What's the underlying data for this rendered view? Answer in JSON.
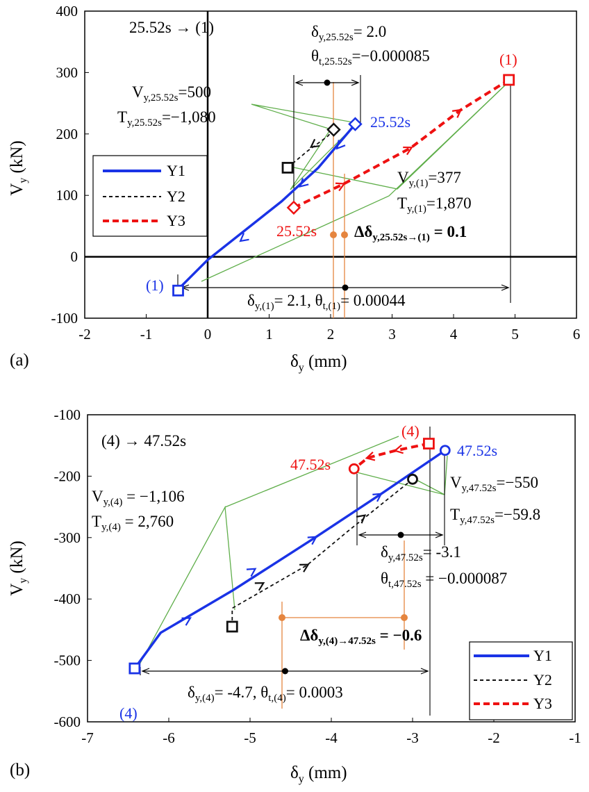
{
  "colors": {
    "y1": "#1a33e6",
    "y2": "#111111",
    "y3": "#ee1111",
    "leader": "#5fae4a",
    "delta": "#e5853f",
    "axis": "#000000"
  },
  "chart_data": [
    {
      "type": "line",
      "panel_label": "(a)",
      "xlabel_main": "δ",
      "xlabel_sub": "y",
      "xlabel_unit": " (mm)",
      "ylabel_main": "V",
      "ylabel_sub": "y",
      "ylabel_unit": " (kN)",
      "xlim": [
        -2,
        6
      ],
      "ylim": [
        -100,
        400
      ],
      "xticks": [
        -2,
        -1,
        0,
        1,
        2,
        3,
        4,
        5,
        6
      ],
      "yticks": [
        -100,
        0,
        100,
        200,
        300,
        400
      ],
      "legend": {
        "position": "middle-left",
        "entries": [
          "Y1",
          "Y2",
          "Y3"
        ]
      },
      "series": [
        {
          "name": "Y1",
          "style": "solid",
          "points": [
            [
              2.4,
              216
            ],
            [
              1.8,
              145
            ],
            [
              1.2,
              90
            ],
            [
              0.0,
              -5
            ],
            [
              -0.5,
              -55
            ]
          ],
          "arrows": [
            [
              2.12,
              178
            ],
            [
              1.52,
              116
            ],
            [
              0.55,
              27
            ]
          ]
        },
        {
          "name": "Y2",
          "style": "dashed",
          "points": [
            [
              2.05,
              207
            ],
            [
              1.95,
              196
            ],
            [
              1.62,
              172
            ],
            [
              1.3,
              145
            ]
          ],
          "arrows": [
            [
              1.7,
              180
            ]
          ]
        },
        {
          "name": "Y3",
          "style": "dashed",
          "points": [
            [
              1.4,
              80
            ],
            [
              2.2,
              118
            ],
            [
              3.3,
              177
            ],
            [
              4.1,
              238
            ],
            [
              4.9,
              288
            ]
          ],
          "arrows": [
            [
              2.2,
              118
            ],
            [
              3.3,
              177
            ],
            [
              4.1,
              238
            ]
          ]
        }
      ],
      "markers": [
        {
          "series": "Y1",
          "shape": "diamond",
          "x": 2.4,
          "y": 216,
          "label": "25.52s"
        },
        {
          "series": "Y1",
          "shape": "square",
          "x": -0.48,
          "y": -55,
          "label": "(1)"
        },
        {
          "series": "Y2",
          "shape": "diamond",
          "x": 2.05,
          "y": 207,
          "label": ""
        },
        {
          "series": "Y2",
          "shape": "square",
          "x": 1.3,
          "y": 145,
          "label": ""
        },
        {
          "series": "Y3",
          "shape": "diamond",
          "x": 1.4,
          "y": 80,
          "label": "25.52s"
        },
        {
          "series": "Y3",
          "shape": "square",
          "x": 4.9,
          "y": 288,
          "label": "(1)"
        }
      ],
      "annotations": {
        "transition_text": "25.52s → (1)",
        "d_top_main": "δ",
        "d_top_sub": "y,25.52s",
        "d_top_value": "= 2.0",
        "th_top_main": "θ",
        "th_top_sub": "t,25.52s",
        "th_top_value": "=−0.000085",
        "v_left_main": "V",
        "v_left_sub": "y,25.52s",
        "v_left_value": "=500",
        "t_left_main": "T",
        "t_left_sub": "y,25.52s",
        "t_left_value": "=−1,080",
        "v_right_main": "V",
        "v_right_sub": "y,(1)",
        "v_right_value": "=377",
        "t_right_main": "T",
        "t_right_sub": "y,(1)",
        "t_right_value": "=1,870",
        "dd_main": "Δδ",
        "dd_sub": "y,25.52s→(1)",
        "dd_value": " = 0.1",
        "d_bottom_main": "δ",
        "d_bottom_sub": "y,(1)",
        "d_bottom_value": "= 2.1, ",
        "th_bottom_main": "θ",
        "th_bottom_sub": "t,(1)",
        "th_bottom_value": "= 0.00044"
      }
    },
    {
      "type": "line",
      "panel_label": "(b)",
      "xlabel_main": "δ",
      "xlabel_sub": "y",
      "xlabel_unit": " (mm)",
      "ylabel_main": "V",
      "ylabel_sub": "y",
      "ylabel_unit": " (kN)",
      "xlim": [
        -7,
        -1
      ],
      "ylim": [
        -600,
        -100
      ],
      "xticks": [
        -7,
        -6,
        -5,
        -4,
        -3,
        -2,
        -1
      ],
      "yticks": [
        -100,
        -200,
        -300,
        -400,
        -500,
        -600
      ],
      "legend": {
        "position": "bottom-right",
        "entries": [
          "Y1",
          "Y2",
          "Y3"
        ]
      },
      "series": [
        {
          "name": "Y1",
          "style": "solid",
          "points": [
            [
              -6.42,
              -513
            ],
            [
              -6.1,
              -455
            ],
            [
              -5.2,
              -385
            ],
            [
              -4.2,
              -300
            ],
            [
              -3.4,
              -230
            ],
            [
              -2.6,
              -158
            ]
          ],
          "arrows": [
            [
              -5.75,
              -432
            ],
            [
              -4.95,
              -352
            ],
            [
              -4.2,
              -300
            ],
            [
              -3.4,
              -230
            ]
          ]
        },
        {
          "name": "Y2",
          "style": "dashed",
          "points": [
            [
              -5.22,
              -445
            ],
            [
              -5.22,
              -415
            ],
            [
              -4.3,
              -345
            ],
            [
              -3.8,
              -290
            ],
            [
              -3.0,
              -205
            ]
          ],
          "arrows": [
            [
              -4.85,
              -375
            ],
            [
              -4.3,
              -345
            ],
            [
              -3.6,
              -265
            ]
          ]
        },
        {
          "name": "Y3",
          "style": "dashed",
          "points": [
            [
              -2.8,
              -147
            ],
            [
              -3.2,
              -158
            ],
            [
              -3.55,
              -170
            ],
            [
              -3.72,
              -188
            ]
          ],
          "arrows": [
            [
              -3.2,
              -158
            ],
            [
              -3.55,
              -170
            ]
          ]
        }
      ],
      "markers": [
        {
          "series": "Y1",
          "shape": "square",
          "x": -6.42,
          "y": -513,
          "label": "(4)"
        },
        {
          "series": "Y1",
          "shape": "circle",
          "x": -2.6,
          "y": -158,
          "label": "47.52s"
        },
        {
          "series": "Y2",
          "shape": "square",
          "x": -5.22,
          "y": -445,
          "label": ""
        },
        {
          "series": "Y2",
          "shape": "circle",
          "x": -3.0,
          "y": -205,
          "label": ""
        },
        {
          "series": "Y3",
          "shape": "square",
          "x": -2.8,
          "y": -147,
          "label": "(4)"
        },
        {
          "series": "Y3",
          "shape": "circle",
          "x": -3.72,
          "y": -188,
          "label": "47.52s"
        }
      ],
      "annotations": {
        "transition_text": "(4) → 47.52s",
        "v_left_main": "V",
        "v_left_sub": "y,(4)",
        "v_left_value": " = −1,106",
        "t_left_main": "T",
        "t_left_sub": "y,(4)",
        "t_left_value": " = 2,760",
        "v_right_main": "V",
        "v_right_sub": "y,47.52s",
        "v_right_value": "=−550",
        "t_right_main": "T",
        "t_right_sub": "y,47.52s",
        "t_right_value": "=−59.8",
        "d_mid_main": "δ",
        "d_mid_sub": "y,47.52s",
        "d_mid_value": "= -3.1",
        "th_mid_main": "θ",
        "th_mid_sub": "t,47.52s",
        "th_mid_value": " = −0.000087",
        "dd_main": "Δδ",
        "dd_sub": "y,(4)→47.52s",
        "dd_value": " = −0.6",
        "d_bottom_main": "δ",
        "d_bottom_sub": "y,(4)",
        "d_bottom_value": "= -4.7, ",
        "th_bottom_main": "θ",
        "th_bottom_sub": "t,(4)",
        "th_bottom_value": "= 0.0003"
      }
    }
  ]
}
